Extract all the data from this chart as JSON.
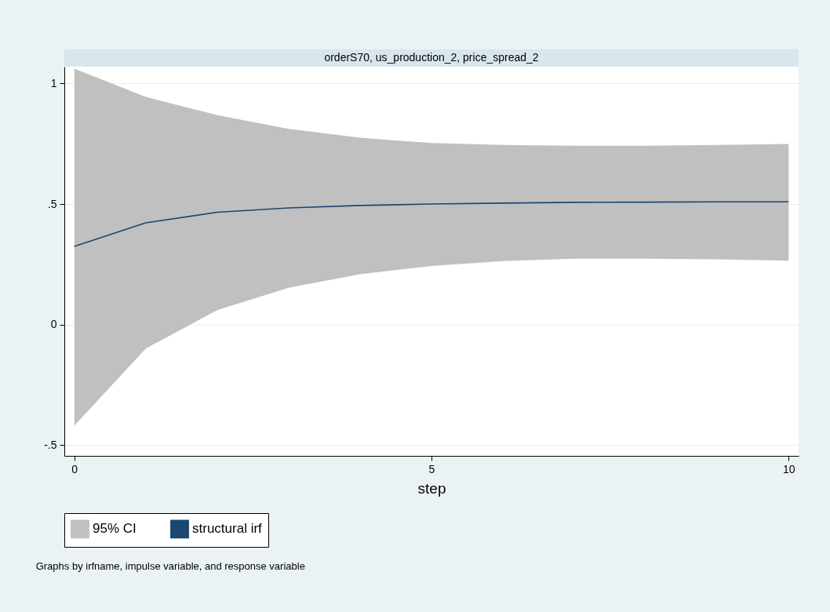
{
  "chart_data": {
    "type": "line",
    "title": "orderS70, us_production_2, price_spread_2",
    "xlabel": "step",
    "x": [
      0,
      1,
      2,
      3,
      4,
      5,
      6,
      7,
      8,
      9,
      10
    ],
    "series": [
      {
        "name": "structural irf",
        "color": "#1a476f",
        "values": [
          0.324,
          0.422,
          0.466,
          0.484,
          0.494,
          0.5,
          0.504,
          0.507,
          0.508,
          0.509,
          0.509
        ],
        "lower": [
          -0.42,
          -0.1,
          0.06,
          0.153,
          0.209,
          0.243,
          0.263,
          0.273,
          0.273,
          0.271,
          0.265
        ],
        "upper": [
          1.062,
          0.945,
          0.869,
          0.812,
          0.775,
          0.753,
          0.745,
          0.742,
          0.742,
          0.745,
          0.749
        ]
      }
    ],
    "xlim": [
      -0.14,
      10.14
    ],
    "xticks": [
      0,
      5,
      10
    ],
    "ylim": [
      -0.545,
      1.07
    ],
    "yticks": [
      {
        "value": -0.5,
        "label": "-.5"
      },
      0,
      {
        "value": 0.5,
        "label": ".5"
      },
      1
    ],
    "grid": "y",
    "legend": "bottom",
    "marker": "none",
    "line_style": "solid",
    "annotations": [
      "95% CI",
      "Graphs by irfname, impulse variable, and response variable"
    ]
  }
}
